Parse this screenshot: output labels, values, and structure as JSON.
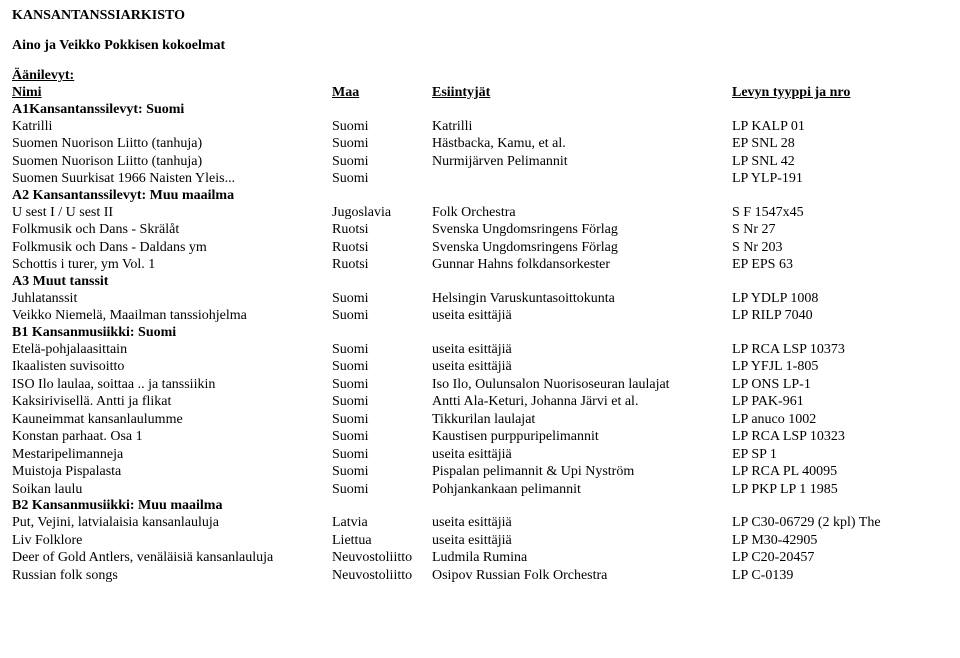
{
  "title": "KANSANTANSSIARKISTO",
  "subtitle": "Aino ja Veikko Pokkisen kokoelmat",
  "columns_header": {
    "label": "Äänilevyt:",
    "c1": "Nimi",
    "c2": "Maa",
    "c3": "Esiintyjät",
    "c4": "Levyn tyyppi ja nro"
  },
  "sections": [
    {
      "heading": "A1Kansantanssilevyt: Suomi",
      "rows": [
        {
          "c1": "Katrilli",
          "c2": "Suomi",
          "c3": "Katrilli",
          "c4": "LP KALP 01"
        },
        {
          "c1": "Suomen Nuorison Liitto (tanhuja)",
          "c2": "Suomi",
          "c3": "Hästbacka, Kamu, et al.",
          "c4": "EP SNL 28"
        },
        {
          "c1": "Suomen Nuorison Liitto (tanhuja)",
          "c2": "Suomi",
          "c3": "Nurmijärven Pelimannit",
          "c4": "LP SNL 42"
        },
        {
          "c1": "Suomen Suurkisat 1966 Naisten Yleis...",
          "c2": "Suomi",
          "c3": "",
          "c4": "LP YLP-191"
        }
      ]
    },
    {
      "heading": "A2 Kansantanssilevyt: Muu maailma",
      "rows": [
        {
          "c1": "U sest I / U sest II",
          "c2": "Jugoslavia",
          "c3": "Folk Orchestra",
          "c4": "S F 1547x45"
        },
        {
          "c1": "Folkmusik och Dans - Skrälåt",
          "c2": "Ruotsi",
          "c3": "Svenska Ungdomsringens Förlag",
          "c4": "S Nr 27"
        },
        {
          "c1": "Folkmusik och Dans - Daldans ym",
          "c2": "Ruotsi",
          "c3": "Svenska Ungdomsringens Förlag",
          "c4": "S Nr 203"
        },
        {
          "c1": "Schottis i turer, ym Vol. 1",
          "c2": "Ruotsi",
          "c3": "Gunnar Hahns folkdansorkester",
          "c4": "EP EPS 63"
        }
      ]
    },
    {
      "heading": "A3 Muut tanssit",
      "rows": [
        {
          "c1": "Juhlatanssit",
          "c2": "Suomi",
          "c3": "Helsingin Varuskuntasoittokunta",
          "c4": "LP YDLP 1008"
        },
        {
          "c1": "Veikko Niemelä, Maailman tanssiohjelma",
          "c2": "Suomi",
          "c3": "useita esittäjiä",
          "c4": "LP RILP 7040"
        }
      ]
    },
    {
      "heading": "B1 Kansanmusiikki: Suomi",
      "rows": [
        {
          "c1": "Etelä-pohjalaasittain",
          "c2": "Suomi",
          "c3": "useita esittäjiä",
          "c4": "LP RCA LSP 10373"
        },
        {
          "c1": "Ikaalisten suvisoitto",
          "c2": "Suomi",
          "c3": "useita esittäjiä",
          "c4": "LP YFJL 1-805"
        },
        {
          "c1": "ISO Ilo laulaa, soittaa .. ja tanssiikin",
          "c2": "Suomi",
          "c3": "Iso Ilo, Oulunsalon Nuorisoseuran laulajat",
          "c4": "LP ONS LP-1"
        },
        {
          "c1": "Kaksirivisellä. Antti ja flikat",
          "c2": "Suomi",
          "c3": "Antti Ala-Keturi, Johanna Järvi et al.",
          "c4": "LP PAK-961"
        },
        {
          "c1": "Kauneimmat kansanlaulumme",
          "c2": "Suomi",
          "c3": "Tikkurilan laulajat",
          "c4": "LP anuco 1002"
        },
        {
          "c1": "Konstan parhaat. Osa 1",
          "c2": "Suomi",
          "c3": "Kaustisen purppuripelimannit",
          "c4": "LP RCA LSP 10323"
        },
        {
          "c1": "Mestaripelimanneja",
          "c2": "Suomi",
          "c3": "useita esittäjiä",
          "c4": "EP SP 1"
        },
        {
          "c1": "Muistoja Pispalasta",
          "c2": "Suomi",
          "c3": "Pispalan pelimannit & Upi Nyström",
          "c4": "LP RCA PL 40095"
        },
        {
          "c1": "Soikan laulu",
          "c2": "Suomi",
          "c3": "Pohjankankaan pelimannit",
          "c4": "LP PKP LP 1 1985"
        }
      ]
    },
    {
      "heading": "B2 Kansanmusiikki: Muu maailma",
      "rows": [
        {
          "c1": "Put, Vejini, latvialaisia kansanlauluja",
          "c2": "Latvia",
          "c3": "useita esittäjiä",
          "c4": "LP C30-06729  (2 kpl) The"
        },
        {
          "c1": "Liv Folklore",
          "c2": "Liettua",
          "c3": "useita esittäjiä",
          "c4": "LP M30-42905"
        },
        {
          "c1": "Deer of Gold Antlers, venäläisiä kansanlauluja",
          "c2": "Neuvostoliitto",
          "c3": "Ludmila Rumina",
          "c4": "LP C20-20457"
        },
        {
          "c1": "Russian folk songs",
          "c2": "Neuvostoliitto",
          "c3": "Osipov Russian Folk Orchestra",
          "c4": "LP C-0139"
        }
      ]
    }
  ]
}
